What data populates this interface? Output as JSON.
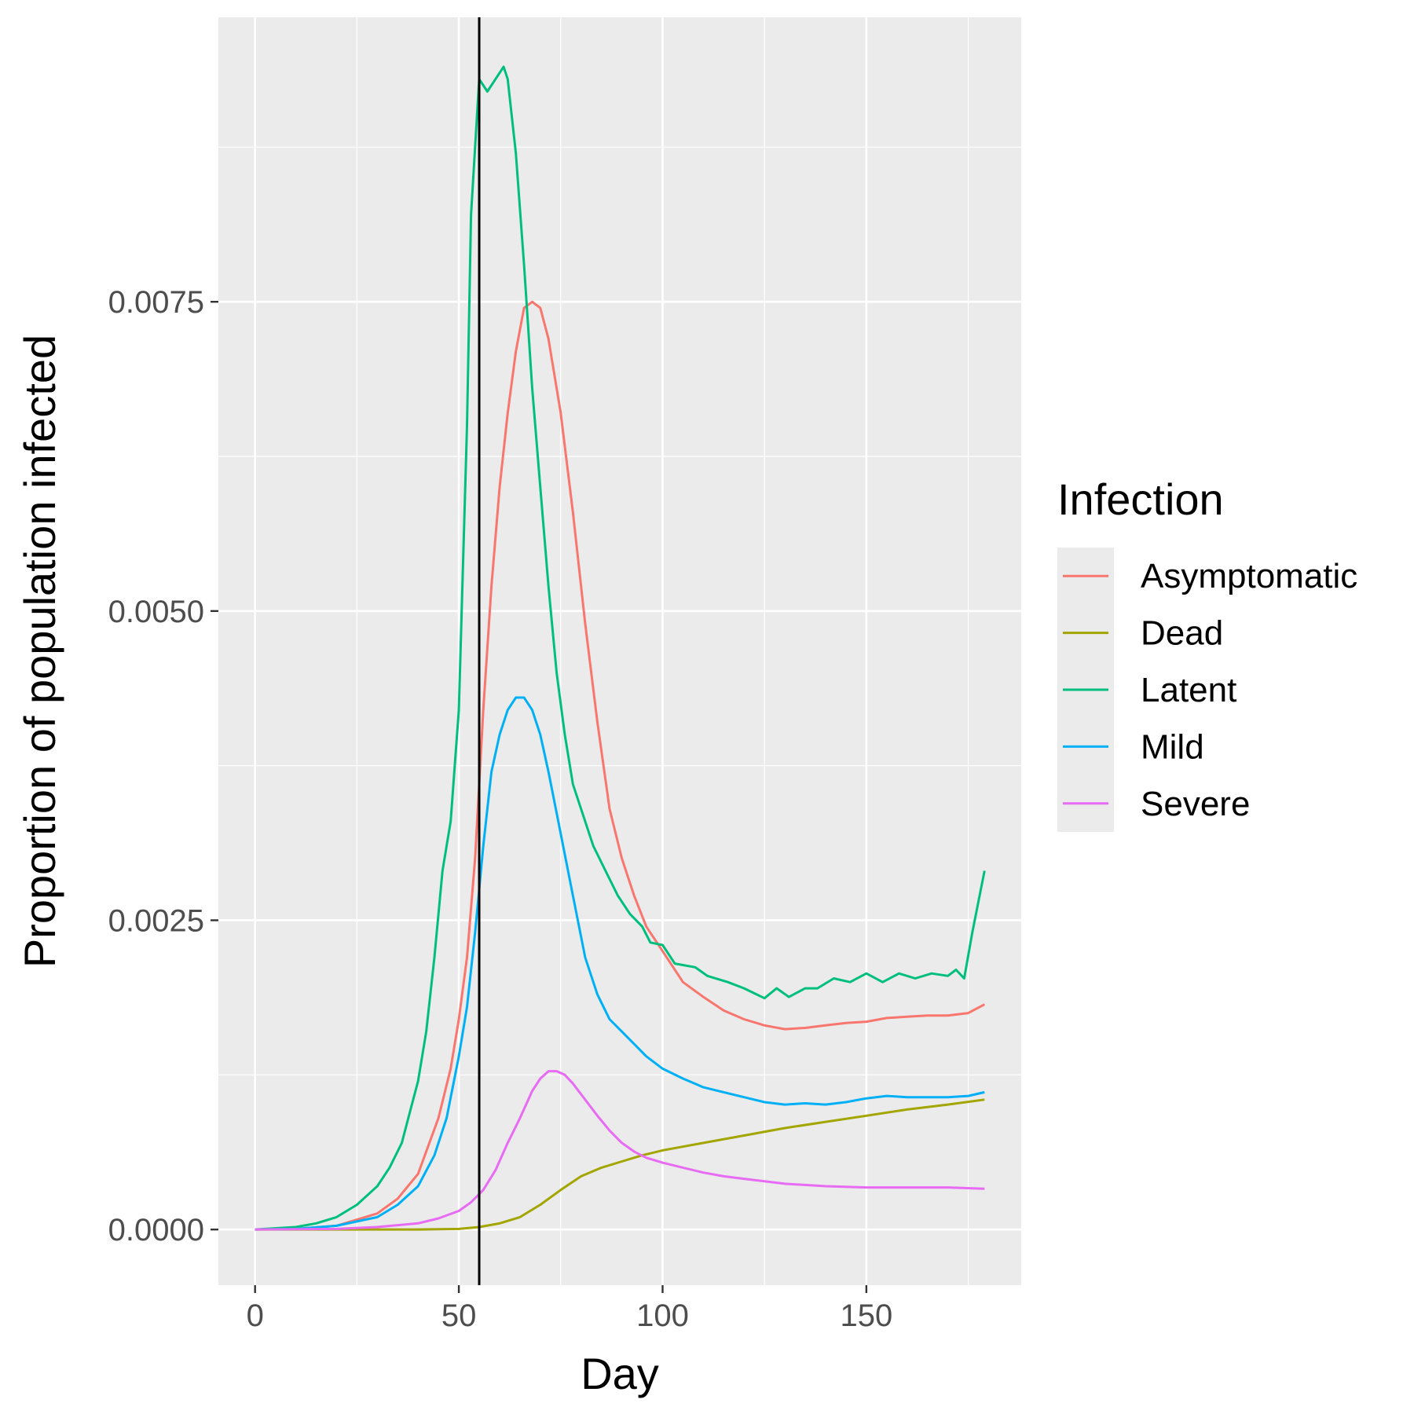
{
  "chart_data": {
    "type": "line",
    "title": "",
    "xlabel": "Day",
    "ylabel": "Proportion of population infected",
    "xlim": [
      -9,
      188
    ],
    "ylim": [
      -0.00045,
      0.0098
    ],
    "x_ticks": [
      0,
      50,
      100,
      150
    ],
    "x_tick_labels": [
      "0",
      "50",
      "100",
      "150"
    ],
    "y_ticks": [
      0,
      0.0025,
      0.005,
      0.0075
    ],
    "y_tick_labels": [
      "0.0000",
      "0.0025",
      "0.0050",
      "0.0075"
    ],
    "grid": true,
    "vline": {
      "x": 55,
      "color": "#000000"
    },
    "legend": {
      "title": "Infection",
      "position": "right"
    },
    "series": [
      {
        "name": "Asymptomatic",
        "color": "#F8766D",
        "points": [
          [
            0,
            0
          ],
          [
            10,
            5e-06
          ],
          [
            20,
            3e-05
          ],
          [
            30,
            0.00013
          ],
          [
            35,
            0.00025
          ],
          [
            40,
            0.00045
          ],
          [
            45,
            0.0009
          ],
          [
            48,
            0.0013
          ],
          [
            50,
            0.0017
          ],
          [
            52,
            0.0022
          ],
          [
            54,
            0.003
          ],
          [
            56,
            0.0042
          ],
          [
            58,
            0.0052
          ],
          [
            60,
            0.006
          ],
          [
            62,
            0.0066
          ],
          [
            64,
            0.0071
          ],
          [
            66,
            0.00745
          ],
          [
            68,
            0.0075
          ],
          [
            70,
            0.00745
          ],
          [
            72,
            0.0072
          ],
          [
            75,
            0.0066
          ],
          [
            78,
            0.0058
          ],
          [
            81,
            0.0049
          ],
          [
            84,
            0.0041
          ],
          [
            87,
            0.0034
          ],
          [
            90,
            0.003
          ],
          [
            93,
            0.0027
          ],
          [
            96,
            0.00245
          ],
          [
            100,
            0.00225
          ],
          [
            105,
            0.002
          ],
          [
            110,
            0.00188
          ],
          [
            115,
            0.00177
          ],
          [
            120,
            0.0017
          ],
          [
            125,
            0.00165
          ],
          [
            130,
            0.00162
          ],
          [
            135,
            0.00163
          ],
          [
            140,
            0.00165
          ],
          [
            145,
            0.00167
          ],
          [
            150,
            0.00168
          ],
          [
            155,
            0.00171
          ],
          [
            160,
            0.00172
          ],
          [
            165,
            0.00173
          ],
          [
            170,
            0.00173
          ],
          [
            175,
            0.00175
          ],
          [
            179,
            0.00182
          ]
        ]
      },
      {
        "name": "Dead",
        "color": "#A3A500",
        "points": [
          [
            0,
            0
          ],
          [
            20,
            0
          ],
          [
            40,
            0
          ],
          [
            50,
            5e-06
          ],
          [
            55,
            2e-05
          ],
          [
            60,
            5e-05
          ],
          [
            65,
            0.0001
          ],
          [
            70,
            0.0002
          ],
          [
            75,
            0.00032
          ],
          [
            80,
            0.00043
          ],
          [
            85,
            0.0005
          ],
          [
            90,
            0.00055
          ],
          [
            95,
            0.0006
          ],
          [
            100,
            0.00064
          ],
          [
            110,
            0.0007
          ],
          [
            120,
            0.00076
          ],
          [
            130,
            0.00082
          ],
          [
            140,
            0.00087
          ],
          [
            150,
            0.00092
          ],
          [
            160,
            0.00097
          ],
          [
            170,
            0.00101
          ],
          [
            179,
            0.00105
          ]
        ]
      },
      {
        "name": "Latent",
        "color": "#00BF7D",
        "points": [
          [
            0,
            0
          ],
          [
            10,
            2e-05
          ],
          [
            15,
            5e-05
          ],
          [
            20,
            0.0001
          ],
          [
            25,
            0.0002
          ],
          [
            30,
            0.00035
          ],
          [
            33,
            0.0005
          ],
          [
            36,
            0.0007
          ],
          [
            38,
            0.00095
          ],
          [
            40,
            0.0012
          ],
          [
            42,
            0.0016
          ],
          [
            44,
            0.0022
          ],
          [
            46,
            0.0029
          ],
          [
            48,
            0.0033
          ],
          [
            50,
            0.0042
          ],
          [
            52,
            0.0065
          ],
          [
            53,
            0.0082
          ],
          [
            55,
            0.0093
          ],
          [
            57,
            0.0092
          ],
          [
            59,
            0.0093
          ],
          [
            61,
            0.0094
          ],
          [
            62,
            0.0093
          ],
          [
            64,
            0.0087
          ],
          [
            66,
            0.0078
          ],
          [
            68,
            0.0068
          ],
          [
            70,
            0.006
          ],
          [
            72,
            0.0052
          ],
          [
            74,
            0.0045
          ],
          [
            76,
            0.004
          ],
          [
            78,
            0.0036
          ],
          [
            80,
            0.0034
          ],
          [
            83,
            0.0031
          ],
          [
            86,
            0.0029
          ],
          [
            89,
            0.0027
          ],
          [
            92,
            0.00255
          ],
          [
            95,
            0.00245
          ],
          [
            97,
            0.00232
          ],
          [
            100,
            0.0023
          ],
          [
            103,
            0.00215
          ],
          [
            108,
            0.00212
          ],
          [
            111,
            0.00205
          ],
          [
            116,
            0.002
          ],
          [
            120,
            0.00195
          ],
          [
            125,
            0.00187
          ],
          [
            128,
            0.00195
          ],
          [
            131,
            0.00188
          ],
          [
            135,
            0.00195
          ],
          [
            138,
            0.00195
          ],
          [
            142,
            0.00203
          ],
          [
            146,
            0.002
          ],
          [
            150,
            0.00207
          ],
          [
            154,
            0.002
          ],
          [
            158,
            0.00207
          ],
          [
            162,
            0.00203
          ],
          [
            166,
            0.00207
          ],
          [
            170,
            0.00205
          ],
          [
            172,
            0.0021
          ],
          [
            174,
            0.00203
          ],
          [
            176,
            0.0024
          ],
          [
            179,
            0.0029
          ]
        ]
      },
      {
        "name": "Mild",
        "color": "#00B0F6",
        "points": [
          [
            0,
            0
          ],
          [
            10,
            5e-06
          ],
          [
            20,
            3e-05
          ],
          [
            30,
            0.0001
          ],
          [
            35,
            0.0002
          ],
          [
            40,
            0.00035
          ],
          [
            44,
            0.0006
          ],
          [
            47,
            0.0009
          ],
          [
            50,
            0.0014
          ],
          [
            52,
            0.0018
          ],
          [
            54,
            0.0024
          ],
          [
            56,
            0.0031
          ],
          [
            58,
            0.0037
          ],
          [
            60,
            0.004
          ],
          [
            62,
            0.0042
          ],
          [
            64,
            0.0043
          ],
          [
            66,
            0.0043
          ],
          [
            68,
            0.0042
          ],
          [
            70,
            0.004
          ],
          [
            72,
            0.0037
          ],
          [
            75,
            0.0032
          ],
          [
            78,
            0.0027
          ],
          [
            81,
            0.0022
          ],
          [
            84,
            0.0019
          ],
          [
            87,
            0.0017
          ],
          [
            90,
            0.0016
          ],
          [
            93,
            0.0015
          ],
          [
            96,
            0.0014
          ],
          [
            100,
            0.0013
          ],
          [
            105,
            0.00122
          ],
          [
            110,
            0.00115
          ],
          [
            115,
            0.00111
          ],
          [
            120,
            0.00107
          ],
          [
            125,
            0.00103
          ],
          [
            130,
            0.00101
          ],
          [
            135,
            0.00102
          ],
          [
            140,
            0.00101
          ],
          [
            145,
            0.00103
          ],
          [
            150,
            0.00106
          ],
          [
            155,
            0.00108
          ],
          [
            160,
            0.00107
          ],
          [
            165,
            0.00107
          ],
          [
            170,
            0.00107
          ],
          [
            175,
            0.00108
          ],
          [
            179,
            0.00111
          ]
        ]
      },
      {
        "name": "Severe",
        "color": "#E76BF3",
        "points": [
          [
            0,
            0
          ],
          [
            20,
            5e-06
          ],
          [
            30,
            2e-05
          ],
          [
            40,
            5e-05
          ],
          [
            45,
            9e-05
          ],
          [
            50,
            0.00015
          ],
          [
            53,
            0.00022
          ],
          [
            56,
            0.00032
          ],
          [
            59,
            0.00048
          ],
          [
            62,
            0.0007
          ],
          [
            65,
            0.0009
          ],
          [
            68,
            0.00112
          ],
          [
            70,
            0.00122
          ],
          [
            72,
            0.00128
          ],
          [
            74,
            0.00128
          ],
          [
            76,
            0.00125
          ],
          [
            78,
            0.00118
          ],
          [
            81,
            0.00105
          ],
          [
            84,
            0.00092
          ],
          [
            87,
            0.0008
          ],
          [
            90,
            0.0007
          ],
          [
            93,
            0.00063
          ],
          [
            96,
            0.00058
          ],
          [
            100,
            0.00054
          ],
          [
            105,
            0.0005
          ],
          [
            110,
            0.00046
          ],
          [
            115,
            0.00043
          ],
          [
            120,
            0.00041
          ],
          [
            125,
            0.00039
          ],
          [
            130,
            0.00037
          ],
          [
            140,
            0.00035
          ],
          [
            150,
            0.00034
          ],
          [
            160,
            0.00034
          ],
          [
            170,
            0.00034
          ],
          [
            179,
            0.00033
          ]
        ]
      }
    ]
  }
}
